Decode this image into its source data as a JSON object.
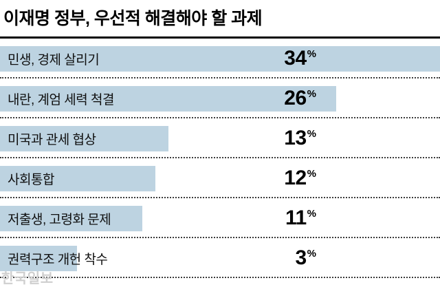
{
  "title": "이재명 정부, 우선적 해결해야 할 과제",
  "watermark": "한국일보",
  "chart_data": {
    "type": "bar",
    "orientation": "horizontal",
    "title": "이재명 정부, 우선적 해결해야 할 과제",
    "categories": [
      "민생, 경제 살리기",
      "내란, 계엄 세력 척결",
      "미국과 관세 협상",
      "사회통합",
      "저출생, 고령화 문제",
      "권력구조 개헌 착수"
    ],
    "values": [
      34,
      26,
      13,
      12,
      11,
      3
    ],
    "unit": "%",
    "xlim": [
      0,
      34
    ],
    "bar_color": "#bdd3e1",
    "grid": false,
    "legend": false,
    "value_label_position": "fixed-column-right-aligned",
    "separator_style": "dotted"
  }
}
